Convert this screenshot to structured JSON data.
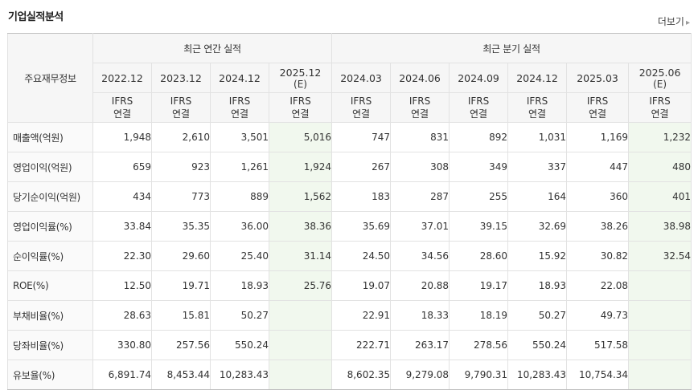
{
  "title": "기업실적분석",
  "more_link": "더보기",
  "header": {
    "corner": "주요재무정보",
    "annual_group": "최근 연간 실적",
    "quarter_group": "최근 분기 실적",
    "accounting": "IFRS\n연결"
  },
  "annual_periods": [
    {
      "year": "2022.12",
      "est": ""
    },
    {
      "year": "2023.12",
      "est": ""
    },
    {
      "year": "2024.12",
      "est": ""
    },
    {
      "year": "2025.12",
      "est": "(E)"
    }
  ],
  "quarter_periods": [
    {
      "year": "2024.03",
      "est": ""
    },
    {
      "year": "2024.06",
      "est": ""
    },
    {
      "year": "2024.09",
      "est": ""
    },
    {
      "year": "2024.12",
      "est": ""
    },
    {
      "year": "2025.03",
      "est": ""
    },
    {
      "year": "2025.06",
      "est": "(E)"
    }
  ],
  "rows": [
    {
      "label": "매출액(억원)",
      "values": [
        "1,948",
        "2,610",
        "3,501",
        "5,016",
        "747",
        "831",
        "892",
        "1,031",
        "1,169",
        "1,232"
      ]
    },
    {
      "label": "영업이익(억원)",
      "values": [
        "659",
        "923",
        "1,261",
        "1,924",
        "267",
        "308",
        "349",
        "337",
        "447",
        "480"
      ]
    },
    {
      "label": "당기순이익(억원)",
      "values": [
        "434",
        "773",
        "889",
        "1,562",
        "183",
        "287",
        "255",
        "164",
        "360",
        "401"
      ]
    },
    {
      "label": "영업이익률(%)",
      "values": [
        "33.84",
        "35.35",
        "36.00",
        "38.36",
        "35.69",
        "37.01",
        "39.15",
        "32.69",
        "38.26",
        "38.98"
      ]
    },
    {
      "label": "순이익률(%)",
      "values": [
        "22.30",
        "29.60",
        "25.40",
        "31.14",
        "24.50",
        "34.56",
        "28.60",
        "15.92",
        "30.82",
        "32.54"
      ]
    },
    {
      "label": "ROE(%)",
      "values": [
        "12.50",
        "19.71",
        "18.93",
        "25.76",
        "19.07",
        "20.88",
        "19.17",
        "18.93",
        "22.08",
        ""
      ]
    },
    {
      "label": "부채비율(%)",
      "values": [
        "28.63",
        "15.81",
        "50.27",
        "",
        "22.91",
        "18.33",
        "18.19",
        "50.27",
        "49.73",
        ""
      ]
    },
    {
      "label": "당좌비율(%)",
      "values": [
        "330.80",
        "257.56",
        "550.24",
        "",
        "222.71",
        "263.17",
        "278.56",
        "550.24",
        "517.58",
        ""
      ]
    },
    {
      "label": "유보율(%)",
      "values": [
        "6,891.74",
        "8,453.44",
        "10,283.43",
        "",
        "8,602.35",
        "9,279.08",
        "9,790.31",
        "10,283.43",
        "10,754.34",
        ""
      ]
    }
  ],
  "colors": {
    "accent": "#f26a21",
    "estimate_bg": "#f1f8ee"
  }
}
